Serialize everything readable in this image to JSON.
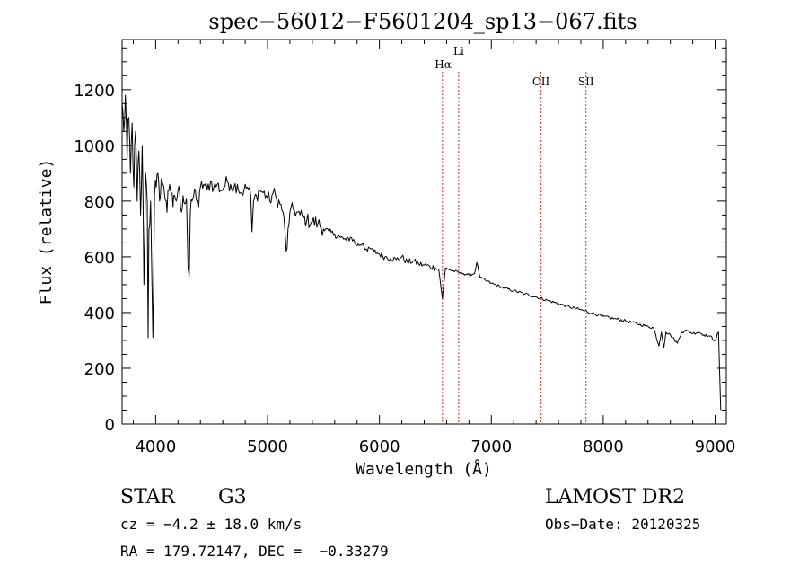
{
  "chart_data": {
    "type": "line",
    "title": "spec−56012−F5601204_sp13−067.fits",
    "xlabel": "Wavelength (Å)",
    "ylabel": "Flux (relative)",
    "xlim": [
      3700,
      9100
    ],
    "ylim": [
      0,
      1380
    ],
    "x_ticks": [
      "4000",
      "5000",
      "6000",
      "7000",
      "8000",
      "9000"
    ],
    "y_ticks": [
      "0",
      "200",
      "400",
      "600",
      "800",
      "1000",
      "1200"
    ],
    "grid": false,
    "series": [
      {
        "x": [
          3700,
          3715,
          3730,
          3745,
          3760,
          3775,
          3790,
          3805,
          3820,
          3835,
          3850,
          3865,
          3880,
          3895,
          3910,
          3925,
          3933,
          3940,
          3955,
          3968,
          3975,
          3990,
          4005,
          4020,
          4035,
          4050,
          4065,
          4080,
          4095,
          4101,
          4110,
          4125,
          4140,
          4155,
          4170,
          4185,
          4200,
          4215,
          4230,
          4245,
          4260,
          4275,
          4290,
          4300,
          4310,
          4325,
          4340,
          4355,
          4370,
          4385,
          4400,
          4430,
          4460,
          4490,
          4520,
          4550,
          4580,
          4610,
          4640,
          4670,
          4700,
          4730,
          4760,
          4790,
          4820,
          4850,
          4861,
          4875,
          4900,
          4930,
          4960,
          4990,
          5020,
          5050,
          5080,
          5110,
          5140,
          5167,
          5175,
          5183,
          5200,
          5230,
          5260,
          5290,
          5320,
          5350,
          5400,
          5450,
          5500,
          5550,
          5600,
          5650,
          5700,
          5750,
          5800,
          5850,
          5893,
          5920,
          5950,
          6000,
          6050,
          6100,
          6150,
          6200,
          6250,
          6300,
          6350,
          6400,
          6450,
          6500,
          6530,
          6563,
          6590,
          6620,
          6650,
          6700,
          6750,
          6800,
          6850,
          6870,
          6900,
          6950,
          7000,
          7100,
          7200,
          7300,
          7400,
          7500,
          7600,
          7700,
          7800,
          7900,
          8000,
          8100,
          8200,
          8300,
          8400,
          8450,
          8498,
          8520,
          8542,
          8560,
          8600,
          8662,
          8700,
          8750,
          8800,
          8850,
          8900,
          8950,
          9000,
          9030,
          9050
        ],
        "y": [
          1150,
          1050,
          1180,
          950,
          1100,
          900,
          1080,
          850,
          1050,
          800,
          980,
          750,
          1000,
          500,
          900,
          800,
          310,
          700,
          800,
          480,
          310,
          820,
          850,
          900,
          800,
          880,
          860,
          820,
          800,
          760,
          840,
          860,
          830,
          780,
          820,
          800,
          840,
          830,
          760,
          820,
          790,
          810,
          560,
          530,
          760,
          800,
          820,
          840,
          800,
          780,
          850,
          860,
          840,
          870,
          850,
          860,
          840,
          850,
          870,
          860,
          850,
          860,
          830,
          840,
          850,
          820,
          690,
          800,
          820,
          840,
          830,
          820,
          800,
          830,
          810,
          790,
          760,
          620,
          630,
          700,
          760,
          770,
          760,
          750,
          740,
          730,
          725,
          720,
          700,
          690,
          680,
          670,
          660,
          670,
          640,
          650,
          620,
          630,
          620,
          610,
          600,
          595,
          590,
          600,
          580,
          585,
          575,
          570,
          565,
          560,
          555,
          450,
          560,
          555,
          550,
          545,
          540,
          535,
          540,
          580,
          525,
          515,
          505,
          490,
          478,
          467,
          456,
          444,
          432,
          420,
          410,
          398,
          386,
          378,
          370,
          360,
          350,
          345,
          280,
          330,
          275,
          330,
          320,
          290,
          330,
          335,
          325,
          330,
          320,
          315,
          300,
          330,
          50
        ]
      }
    ],
    "annotations": [
      {
        "label": "Hα",
        "x": 6563
      },
      {
        "label": "Li",
        "x": 6708
      },
      {
        "label": "OII",
        "x": 7444
      },
      {
        "label": "SII",
        "x": 7846
      }
    ]
  },
  "info": {
    "star_label": "STAR",
    "class_label": "G3",
    "survey": "LAMOST DR2",
    "cz": "cz = −4.2 ± 18.0 km/s",
    "obs_date": "Obs−Date: 20120325",
    "coords": "RA = 179.72147, DEC =  −0.33279"
  },
  "colors": {
    "spectrum": "#000000",
    "line_marker": "#c0392b",
    "axes": "#000000"
  }
}
